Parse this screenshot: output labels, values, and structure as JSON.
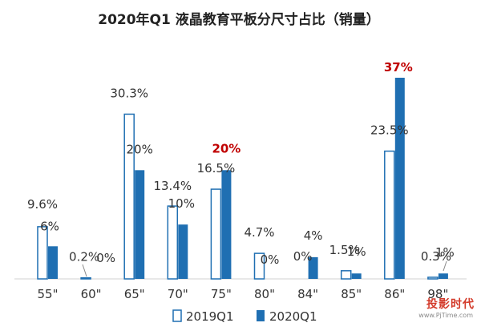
{
  "chart_data": {
    "type": "bar",
    "title": "2020年Q1 液晶教育平板分尺寸占比（销量）",
    "categories": [
      "55\"",
      "60\"",
      "65\"",
      "70\"",
      "75\"",
      "80\"",
      "84\"",
      "85\"",
      "86\"",
      "98\""
    ],
    "series": [
      {
        "name": "2019Q1",
        "values": [
          9.6,
          0.2,
          30.3,
          13.4,
          16.5,
          4.7,
          0,
          1.5,
          23.5,
          0.3
        ],
        "labels": [
          "9.6%",
          "0.2%",
          "30.3%",
          "13.4%",
          "16.5%",
          "4.7%",
          "0%",
          "1.5%",
          "23.5%",
          "0.3%"
        ],
        "color": "#ffffff",
        "stroke": "#1f6fb2"
      },
      {
        "name": "2020Q1",
        "values": [
          6,
          0,
          20,
          10,
          20,
          0,
          4,
          1,
          37,
          1
        ],
        "labels": [
          "6%",
          "0%",
          "20%",
          "10%",
          "20%",
          "0%",
          "4%",
          "1%",
          "37%",
          "1%"
        ],
        "color": "#1f6fb2",
        "highlight": [
          "75\"",
          "86\""
        ]
      }
    ],
    "ylim": [
      0,
      37
    ],
    "grid": false,
    "legend": "bottom",
    "highlight_color": "#c00000"
  },
  "watermark": {
    "text": "投影时代",
    "url": "www.PjTime.com"
  }
}
